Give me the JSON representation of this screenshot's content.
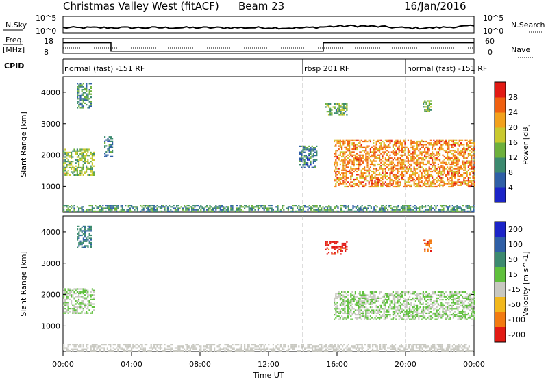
{
  "header": {
    "station": "Christmas Valley West (fitACF)",
    "beam": "Beam 23",
    "date": "16/Jan/2016"
  },
  "strips": {
    "nsky_label": "N.Sky",
    "nsky_ticks": [
      "10^5",
      "10^0"
    ],
    "nsearch_label": "N.Search",
    "freq_label_top": "Freq.",
    "freq_label_bottom": "[MHz]",
    "freq_ticks": [
      "18",
      "8"
    ],
    "nave_label": "Nave",
    "nave_ticks": [
      "60",
      "0"
    ],
    "cpid_label": "CPID",
    "cpid_segments": [
      {
        "label": "normal (fast) -151 RF",
        "start_hour": 0.0,
        "end_hour": 14.0
      },
      {
        "label": "rbsp 201 RF",
        "start_hour": 14.0,
        "end_hour": 20.0
      },
      {
        "label": "normal (fast) -151 RF",
        "start_hour": 20.0,
        "end_hour": 24.0
      }
    ],
    "freq_mhz": [
      {
        "start_hour": 0.0,
        "end_hour": 2.8,
        "value": 15
      },
      {
        "start_hour": 2.8,
        "end_hour": 15.2,
        "value": 9.5
      },
      {
        "start_hour": 15.2,
        "end_hour": 24.0,
        "value": 15
      }
    ]
  },
  "chart_data": [
    {
      "type": "heatmap",
      "title": "",
      "ylabel": "Slant Range [km]",
      "xlabel": "",
      "xlim": [
        0,
        24
      ],
      "ylim": [
        180,
        4500
      ],
      "yticks": [
        1000,
        2000,
        3000,
        4000
      ],
      "colorbar_label": "Power [dB]",
      "colorbar_ticks": [
        "4",
        "8",
        "12",
        "16",
        "20",
        "24",
        "28"
      ],
      "colorbar_range": [
        0,
        30
      ],
      "colors": [
        "#1b24c8",
        "#2f5fa6",
        "#3c8a6f",
        "#6db03c",
        "#c9c92e",
        "#f2a11c",
        "#f06010",
        "#e21a14"
      ],
      "echo_bands": [
        {
          "start_hour": 0.0,
          "end_hour": 1.8,
          "range_min": 1350,
          "range_max": 2200,
          "level": 14
        },
        {
          "start_hour": 0.8,
          "end_hour": 1.6,
          "range_min": 3500,
          "range_max": 4300,
          "level": 10
        },
        {
          "start_hour": 2.4,
          "end_hour": 2.9,
          "range_min": 1950,
          "range_max": 2600,
          "level": 8
        },
        {
          "start_hour": 13.8,
          "end_hour": 14.8,
          "range_min": 1600,
          "range_max": 2300,
          "level": 8
        },
        {
          "start_hour": 15.3,
          "end_hour": 16.6,
          "range_min": 3300,
          "range_max": 3650,
          "level": 12
        },
        {
          "start_hour": 15.8,
          "end_hour": 24.0,
          "range_min": 1000,
          "range_max": 2500,
          "level": 22
        },
        {
          "start_hour": 21.0,
          "end_hour": 21.5,
          "range_min": 3400,
          "range_max": 3750,
          "level": 14
        },
        {
          "start_hour": 0.0,
          "end_hour": 24.0,
          "range_min": 200,
          "range_max": 420,
          "level": 10
        }
      ]
    },
    {
      "type": "heatmap",
      "title": "",
      "ylabel": "Slant Range [km]",
      "xlabel": "Time UT",
      "xlim": [
        0,
        24
      ],
      "ylim": [
        180,
        4500
      ],
      "yticks": [
        1000,
        2000,
        3000,
        4000
      ],
      "xticks": [
        "00:00",
        "04:00",
        "08:00",
        "12:00",
        "16:00",
        "20:00",
        "00:00"
      ],
      "colorbar_label": "Velocity [m s^-1]",
      "colorbar_ticks": [
        "200",
        "100",
        "50",
        "15",
        "-15",
        "-50",
        "-100",
        "-200"
      ],
      "colorbar_range": [
        -250,
        250
      ],
      "colors": [
        "#1b24c8",
        "#2f5fa6",
        "#3c8a6f",
        "#5fc03c",
        "#c8c8c0",
        "#f2b81c",
        "#f27a10",
        "#e21a14"
      ],
      "echo_bands": [
        {
          "start_hour": 0.0,
          "end_hour": 1.8,
          "range_min": 1400,
          "range_max": 2200,
          "value": 0
        },
        {
          "start_hour": 0.8,
          "end_hour": 1.6,
          "range_min": 3500,
          "range_max": 4200,
          "value": 120
        },
        {
          "start_hour": 15.3,
          "end_hour": 16.6,
          "range_min": 3300,
          "range_max": 3700,
          "value": -200
        },
        {
          "start_hour": 15.8,
          "end_hour": 24.0,
          "range_min": 1200,
          "range_max": 2100,
          "value": 0
        },
        {
          "start_hour": 21.0,
          "end_hour": 21.5,
          "range_min": 3400,
          "range_max": 3750,
          "value": -180
        },
        {
          "start_hour": 0.0,
          "end_hour": 24.0,
          "range_min": 200,
          "range_max": 420,
          "value": -40
        }
      ]
    }
  ]
}
